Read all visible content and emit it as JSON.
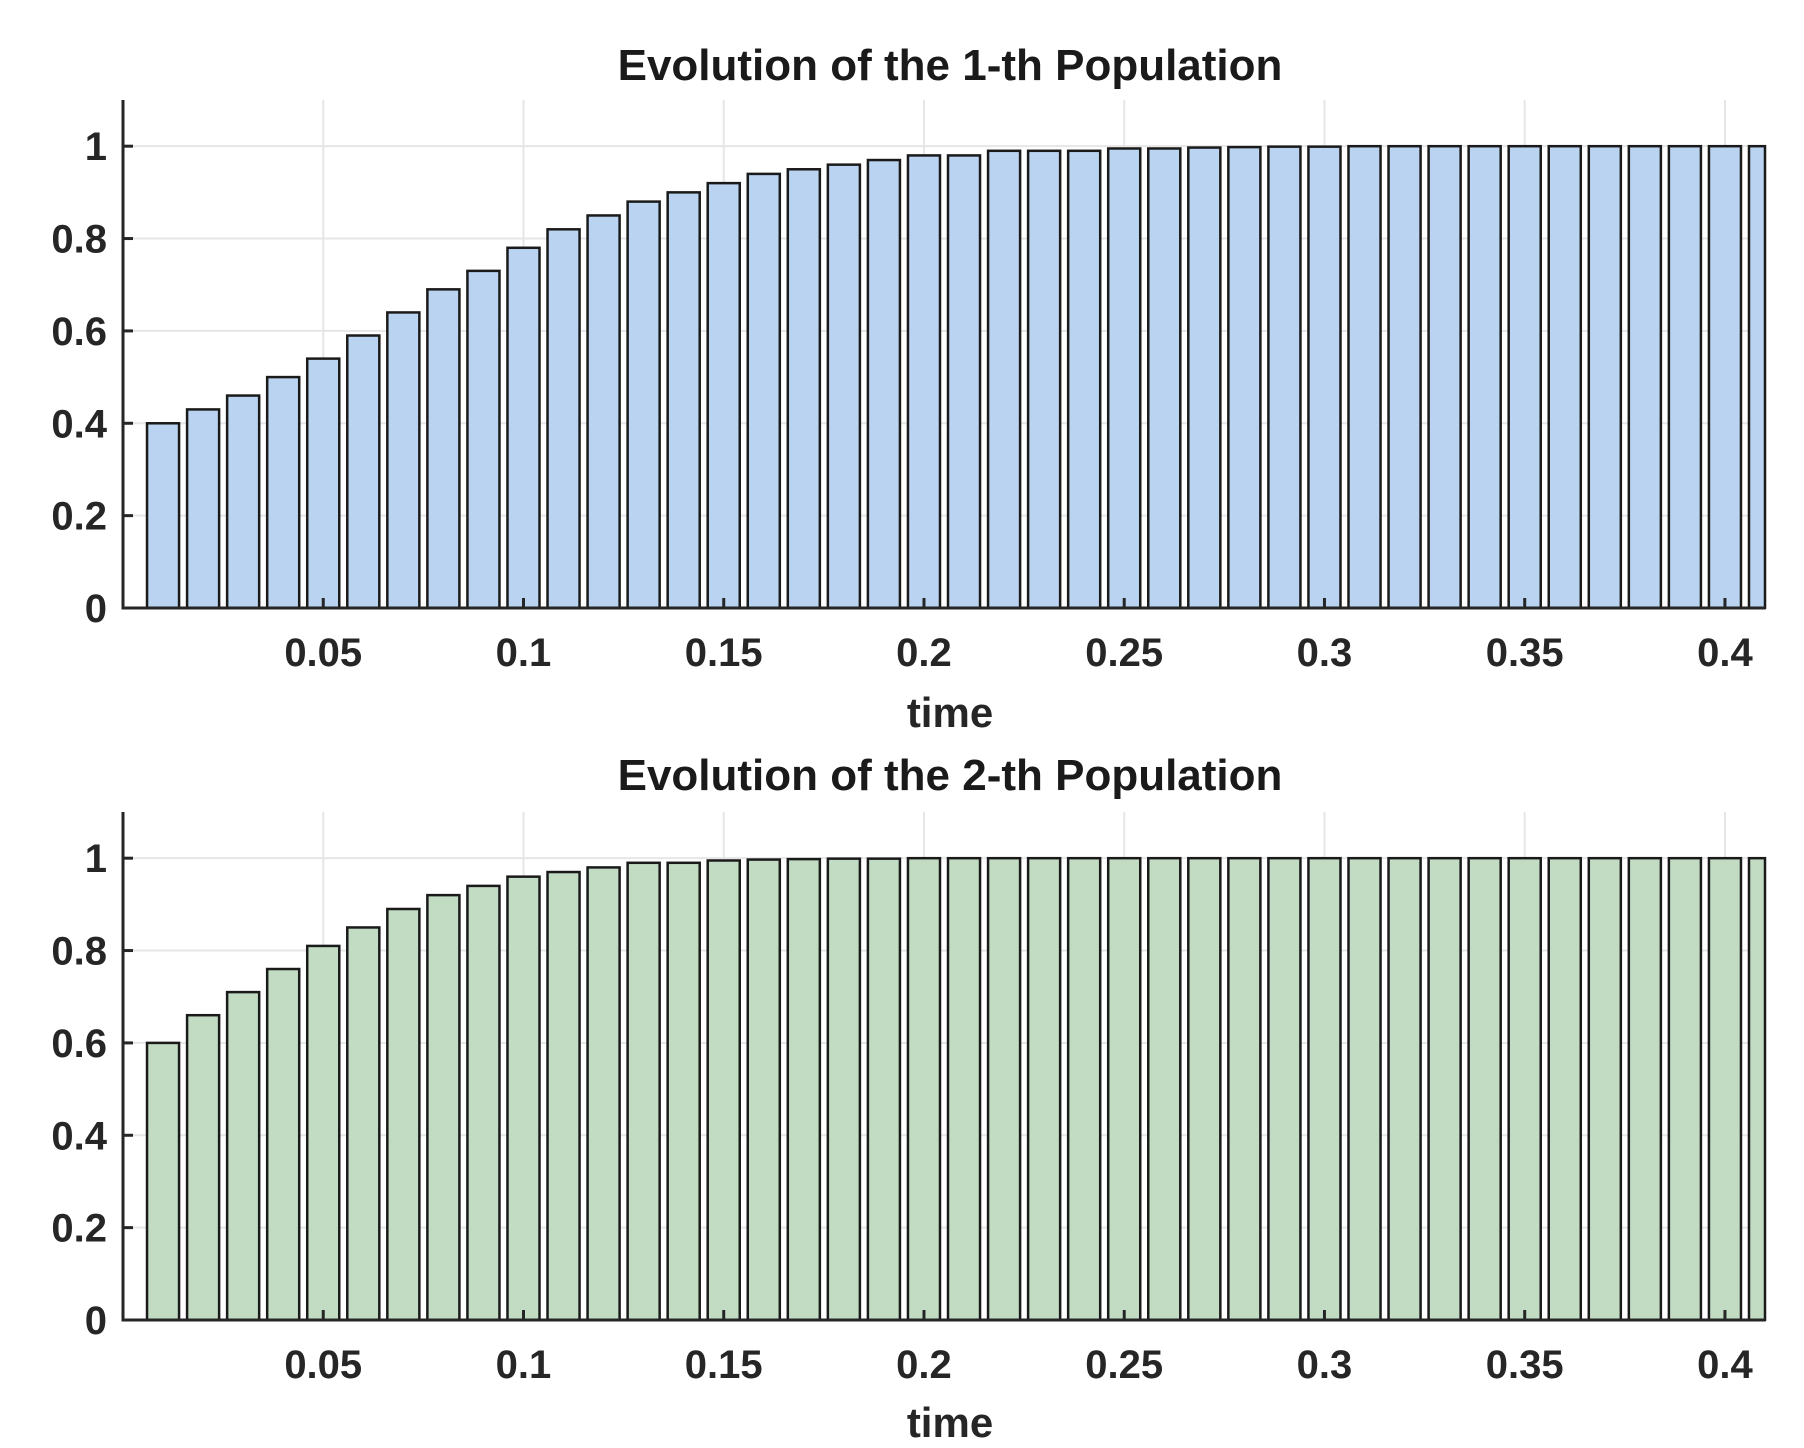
{
  "chart_data": [
    {
      "type": "bar",
      "title": "Evolution of the 1-th Population",
      "xlabel": "time",
      "ylabel": "",
      "xlim": [
        0,
        0.41
      ],
      "ylim": [
        0,
        1.1
      ],
      "x_ticks": [
        0.05,
        0.1,
        0.15,
        0.2,
        0.25,
        0.3,
        0.35,
        0.4
      ],
      "x_tick_labels": [
        "0.05",
        "0.1",
        "0.15",
        "0.2",
        "0.25",
        "0.3",
        "0.35",
        "0.4"
      ],
      "y_ticks": [
        0,
        0.2,
        0.4,
        0.6,
        0.8,
        1
      ],
      "y_tick_labels": [
        "0",
        "0.2",
        "0.4",
        "0.6",
        "0.8",
        "1"
      ],
      "grid": true,
      "bar_color": "#b9d3f0",
      "x": [
        0.01,
        0.02,
        0.03,
        0.04,
        0.05,
        0.06,
        0.07,
        0.08,
        0.09,
        0.1,
        0.11,
        0.12,
        0.13,
        0.14,
        0.15,
        0.16,
        0.17,
        0.18,
        0.19,
        0.2,
        0.21,
        0.22,
        0.23,
        0.24,
        0.25,
        0.26,
        0.27,
        0.28,
        0.29,
        0.3,
        0.31,
        0.32,
        0.33,
        0.34,
        0.35,
        0.36,
        0.37,
        0.38,
        0.39,
        0.4,
        0.41
      ],
      "values": [
        0.4,
        0.43,
        0.46,
        0.5,
        0.54,
        0.59,
        0.64,
        0.69,
        0.73,
        0.78,
        0.82,
        0.85,
        0.88,
        0.9,
        0.92,
        0.94,
        0.95,
        0.96,
        0.97,
        0.98,
        0.98,
        0.99,
        0.99,
        0.99,
        0.995,
        0.995,
        0.997,
        0.998,
        0.999,
        0.999,
        1.0,
        1.0,
        1.0,
        1.0,
        1.0,
        1.0,
        1.0,
        1.0,
        1.0,
        1.0,
        1.0
      ]
    },
    {
      "type": "bar",
      "title": "Evolution of the 2-th Population",
      "xlabel": "time",
      "ylabel": "",
      "xlim": [
        0,
        0.41
      ],
      "ylim": [
        0,
        1.1
      ],
      "x_ticks": [
        0.05,
        0.1,
        0.15,
        0.2,
        0.25,
        0.3,
        0.35,
        0.4
      ],
      "x_tick_labels": [
        "0.05",
        "0.1",
        "0.15",
        "0.2",
        "0.25",
        "0.3",
        "0.35",
        "0.4"
      ],
      "y_ticks": [
        0,
        0.2,
        0.4,
        0.6,
        0.8,
        1
      ],
      "y_tick_labels": [
        "0",
        "0.2",
        "0.4",
        "0.6",
        "0.8",
        "1"
      ],
      "grid": true,
      "bar_color": "#c2dcc4",
      "x": [
        0.01,
        0.02,
        0.03,
        0.04,
        0.05,
        0.06,
        0.07,
        0.08,
        0.09,
        0.1,
        0.11,
        0.12,
        0.13,
        0.14,
        0.15,
        0.16,
        0.17,
        0.18,
        0.19,
        0.2,
        0.21,
        0.22,
        0.23,
        0.24,
        0.25,
        0.26,
        0.27,
        0.28,
        0.29,
        0.3,
        0.31,
        0.32,
        0.33,
        0.34,
        0.35,
        0.36,
        0.37,
        0.38,
        0.39,
        0.4,
        0.41
      ],
      "values": [
        0.6,
        0.66,
        0.71,
        0.76,
        0.81,
        0.85,
        0.89,
        0.92,
        0.94,
        0.96,
        0.97,
        0.98,
        0.99,
        0.99,
        0.995,
        0.997,
        0.998,
        0.999,
        0.999,
        1.0,
        1.0,
        1.0,
        1.0,
        1.0,
        1.0,
        1.0,
        1.0,
        1.0,
        1.0,
        1.0,
        1.0,
        1.0,
        1.0,
        1.0,
        1.0,
        1.0,
        1.0,
        1.0,
        1.0,
        1.0,
        1.0
      ]
    }
  ]
}
